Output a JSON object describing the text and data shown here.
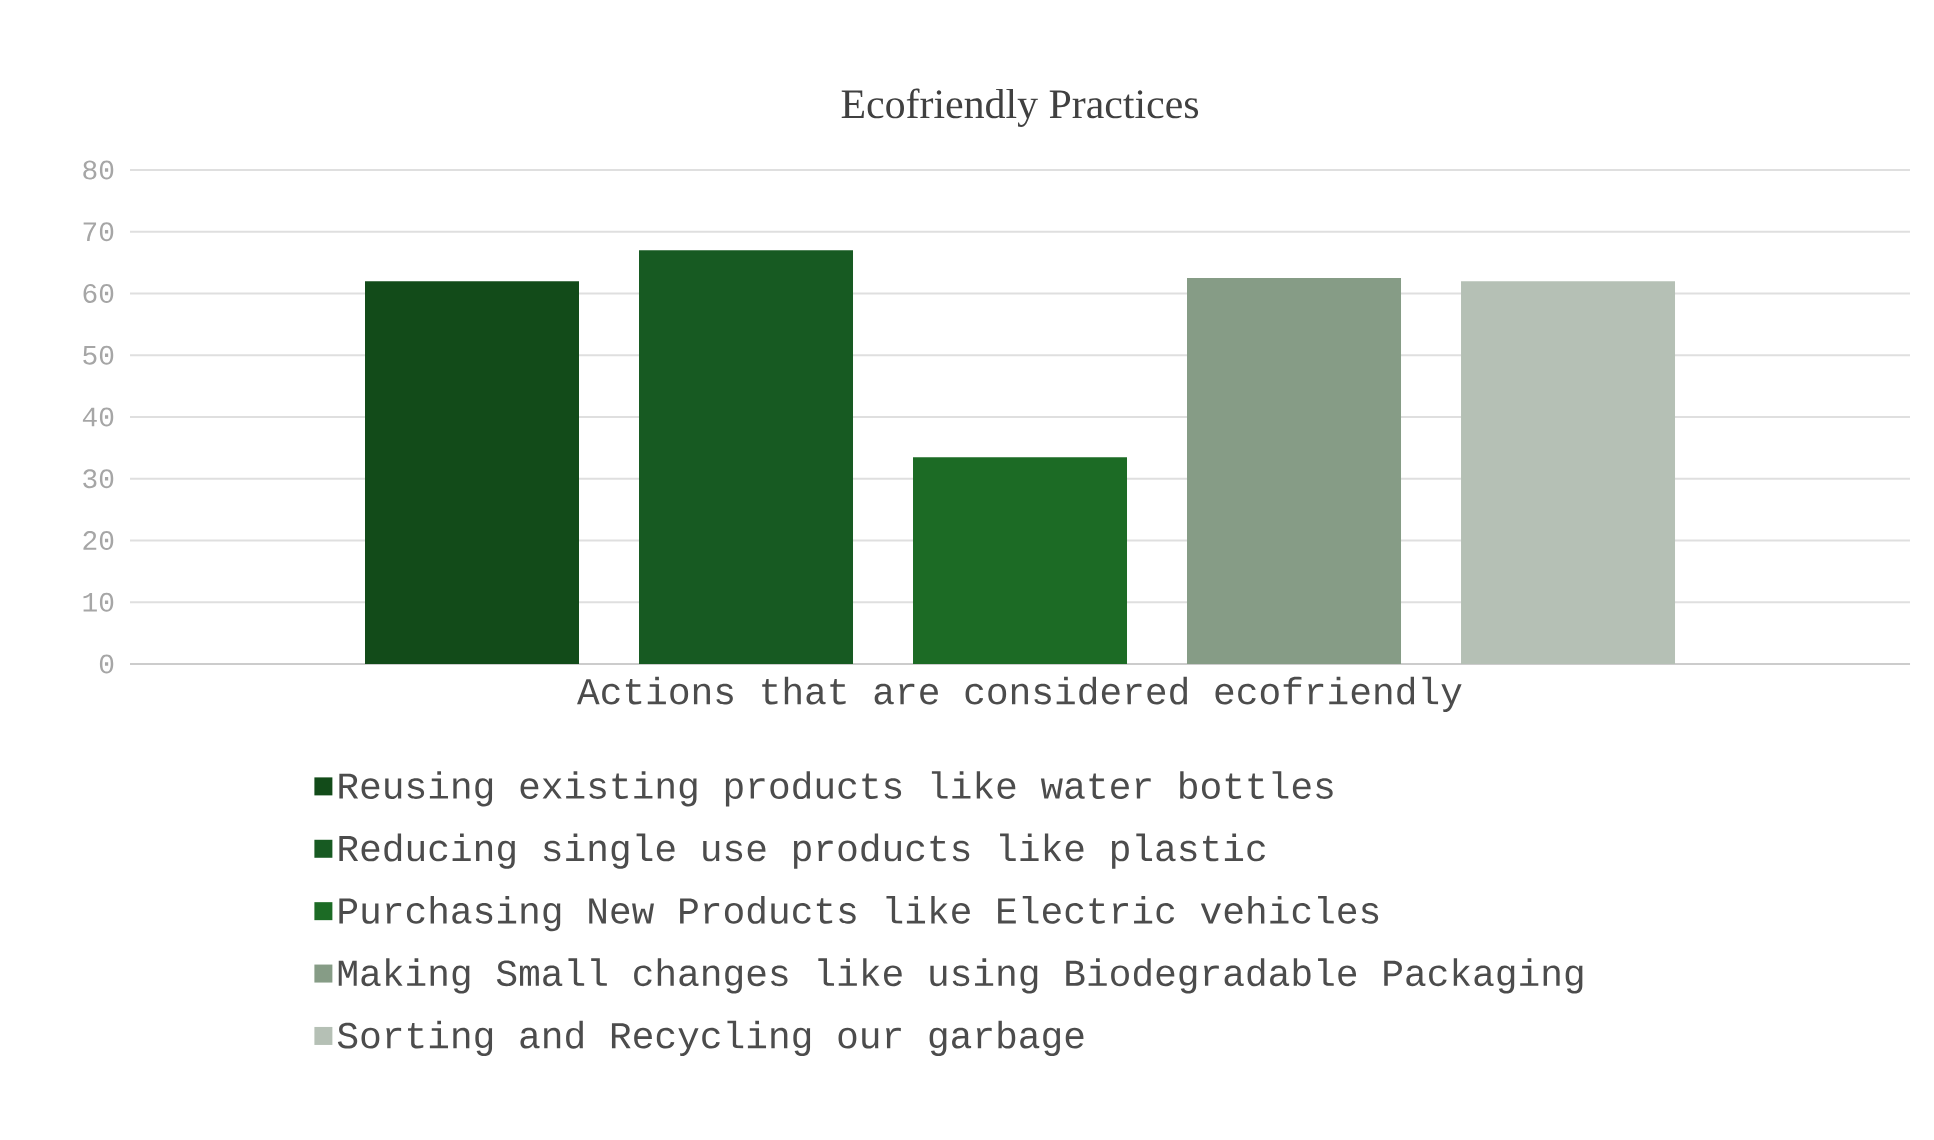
{
  "chart_data": {
    "type": "bar",
    "title": "Ecofriendly Practices",
    "xlabel": "Actions that are considered ecofriendly",
    "categories": [
      null
    ],
    "series": [
      {
        "name": "Reusing existing products like water bottles",
        "color": "#124b19",
        "values": [
          62
        ]
      },
      {
        "name": "Reducing single use products like plastic",
        "color": "#175a22",
        "values": [
          67
        ]
      },
      {
        "name": "Purchasing New Products like Electric vehicles",
        "color": "#1c6b25",
        "values": [
          33.5
        ]
      },
      {
        "name": "Making Small changes like using Biodegradable Packaging",
        "color": "#869c86",
        "values": [
          62.5
        ]
      },
      {
        "name": "Sorting and Recycling our garbage",
        "color": "#b5c0b5",
        "values": [
          62
        ]
      }
    ],
    "ylim": [
      0,
      80
    ],
    "yticks": [
      0,
      10,
      20,
      30,
      40,
      50,
      60,
      70,
      80
    ],
    "grid": "y",
    "legend": "bottom"
  }
}
